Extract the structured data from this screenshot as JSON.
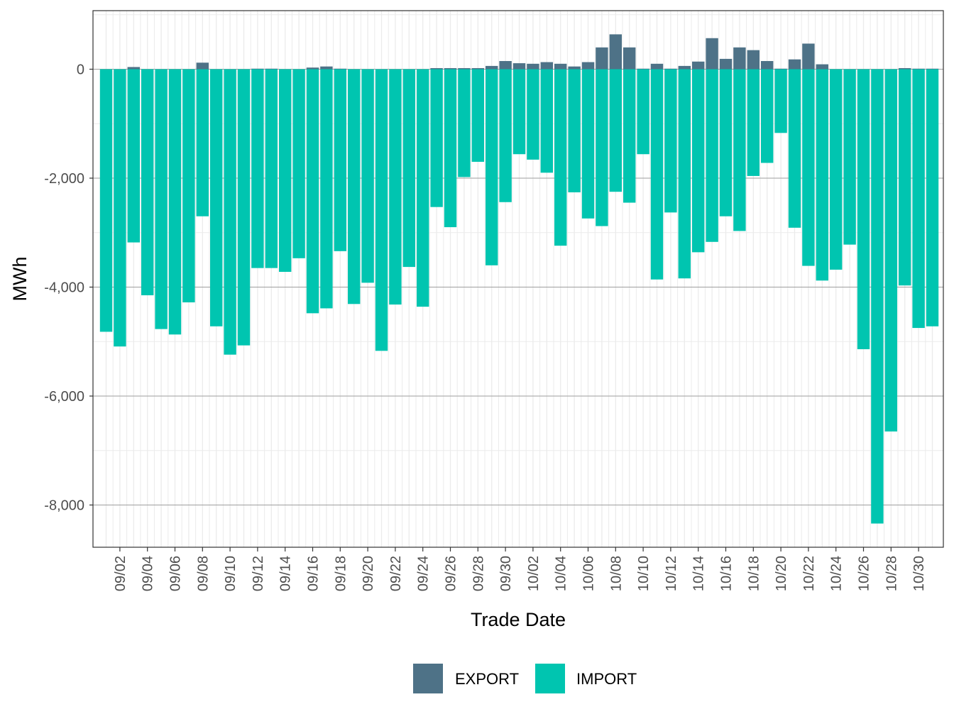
{
  "chart_data": {
    "type": "bar",
    "stacked": true,
    "xlabel": "Trade Date",
    "ylabel": "MWh",
    "ylim": [
      -8400,
      1050
    ],
    "yticks": [
      {
        "value": 0,
        "label": "0"
      },
      {
        "value": -2000,
        "label": "-2,000"
      },
      {
        "value": -4000,
        "label": "-4,000"
      },
      {
        "value": -6000,
        "label": "-6,000"
      },
      {
        "value": -8000,
        "label": "-8,000"
      }
    ],
    "ytick_minor": [
      1000,
      -1000,
      -3000,
      -5000,
      -7000
    ],
    "categories": [
      "09/01",
      "09/02",
      "09/03",
      "09/04",
      "09/05",
      "09/06",
      "09/07",
      "09/08",
      "09/09",
      "09/10",
      "09/11",
      "09/12",
      "09/13",
      "09/14",
      "09/15",
      "09/16",
      "09/17",
      "09/18",
      "09/19",
      "09/20",
      "09/21",
      "09/22",
      "09/23",
      "09/24",
      "09/25",
      "09/26",
      "09/27",
      "09/28",
      "09/29",
      "09/30",
      "10/01",
      "10/02",
      "10/03",
      "10/04",
      "10/05",
      "10/06",
      "10/07",
      "10/08",
      "10/09",
      "10/10",
      "10/11",
      "10/12",
      "10/13",
      "10/14",
      "10/15",
      "10/16",
      "10/17",
      "10/18",
      "10/19",
      "10/20",
      "10/21",
      "10/22",
      "10/23",
      "10/24",
      "10/25",
      "10/26",
      "10/27",
      "10/28",
      "10/29",
      "10/30",
      "10/31"
    ],
    "xtick_labels": [
      "09/02",
      "09/04",
      "09/06",
      "09/08",
      "09/10",
      "09/12",
      "09/14",
      "09/16",
      "09/18",
      "09/20",
      "09/22",
      "09/24",
      "09/26",
      "09/28",
      "09/30",
      "10/02",
      "10/04",
      "10/06",
      "10/08",
      "10/10",
      "10/12",
      "10/14",
      "10/16",
      "10/18",
      "10/20",
      "10/22",
      "10/24",
      "10/26",
      "10/28",
      "10/30"
    ],
    "series": [
      {
        "name": "EXPORT",
        "color": "#4e7287",
        "values": [
          0,
          0,
          40,
          0,
          0,
          0,
          0,
          120,
          0,
          0,
          0,
          10,
          10,
          0,
          0,
          30,
          50,
          10,
          0,
          0,
          0,
          0,
          0,
          0,
          20,
          20,
          20,
          20,
          60,
          150,
          110,
          100,
          130,
          100,
          50,
          130,
          400,
          640,
          400,
          10,
          100,
          10,
          60,
          140,
          570,
          190,
          400,
          350,
          150,
          10,
          180,
          470,
          90,
          0,
          0,
          0,
          0,
          0,
          20,
          10,
          10
        ]
      },
      {
        "name": "IMPORT",
        "color": "#00c5b0",
        "values": [
          -4820,
          -5090,
          -3180,
          -4150,
          -4770,
          -4870,
          -4280,
          -2700,
          -4720,
          -5240,
          -5070,
          -3650,
          -3650,
          -3720,
          -3470,
          -4480,
          -4390,
          -3340,
          -4310,
          -3920,
          -5170,
          -4320,
          -3630,
          -4360,
          -2530,
          -2900,
          -1980,
          -1700,
          -3600,
          -2440,
          -1560,
          -1660,
          -1900,
          -3240,
          -2260,
          -2740,
          -2880,
          -2250,
          -2450,
          -1560,
          -3860,
          -2630,
          -3840,
          -3360,
          -3170,
          -2700,
          -2970,
          -1960,
          -1720,
          -1170,
          -2910,
          -3610,
          -3880,
          -3680,
          -3220,
          -5140,
          -8340,
          -6650,
          -3970,
          -4750,
          -4720
        ]
      }
    ],
    "legend": {
      "position": "bottom"
    },
    "grid": true
  }
}
